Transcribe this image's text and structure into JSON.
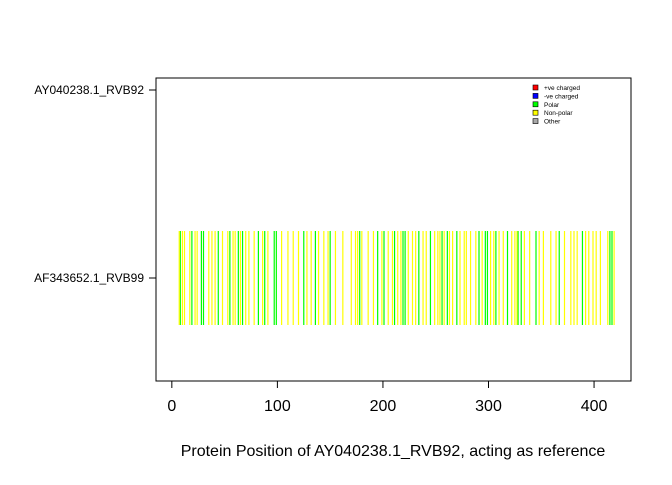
{
  "chart_data": {
    "type": "scatter",
    "xlabel": "Protein Position of AY040238.1_RVB92, acting as reference",
    "ylabel": "",
    "xlim": [
      -15,
      435
    ],
    "x_ticks": [
      0,
      100,
      200,
      300,
      400
    ],
    "y_categories": [
      "AF343652.1_RVB99",
      "AY040238.1_RVB92"
    ],
    "legend": {
      "placement": "top-right",
      "entries": [
        {
          "label": "+ve charged",
          "color": "#ff0000"
        },
        {
          "label": "-ve charged",
          "color": "#0000ff"
        },
        {
          "label": "Polar",
          "color": "#00ff00"
        },
        {
          "label": "Non-polar",
          "color": "#ffff00"
        },
        {
          "label": "Other",
          "color": "#a9a9a9"
        }
      ]
    },
    "series": [
      {
        "name": "Polar",
        "color": "#00ff00",
        "category": "AF343652.1_RVB99",
        "x": [
          8,
          19,
          28,
          30,
          44,
          55,
          63,
          67,
          82,
          88,
          97,
          99,
          125,
          136,
          150,
          178,
          195,
          201,
          211,
          219,
          221,
          234,
          245,
          256,
          261,
          270,
          291,
          297,
          299,
          307,
          318,
          328,
          331,
          345,
          367,
          389,
          415,
          417
        ]
      },
      {
        "name": "Non-polar",
        "color": "#ffff00",
        "category": "AF343652.1_RVB99",
        "x": [
          7,
          10,
          12,
          17,
          22,
          24,
          35,
          38,
          41,
          48,
          53,
          58,
          60,
          65,
          70,
          73,
          78,
          86,
          91,
          104,
          110,
          115,
          120,
          128,
          132,
          139,
          144,
          148,
          155,
          162,
          170,
          174,
          176,
          180,
          186,
          191,
          199,
          205,
          209,
          214,
          217,
          224,
          228,
          231,
          238,
          241,
          249,
          252,
          254,
          258,
          263,
          266,
          273,
          277,
          279,
          283,
          288,
          294,
          302,
          305,
          310,
          314,
          322,
          325,
          327,
          334,
          339,
          348,
          352,
          359,
          364,
          372,
          378,
          381,
          384,
          392,
          395,
          399,
          402,
          406,
          413,
          419
        ]
      }
    ]
  }
}
